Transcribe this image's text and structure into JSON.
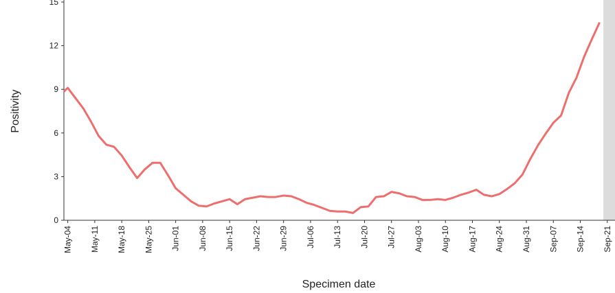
{
  "chart_data": {
    "type": "line",
    "x_label": "Specimen date",
    "y_label": "Positivity",
    "x": [
      "May-03",
      "May-04",
      "May-06",
      "May-08",
      "May-10",
      "May-12",
      "May-14",
      "May-16",
      "May-18",
      "May-20",
      "May-22",
      "May-24",
      "May-26",
      "May-28",
      "May-30",
      "Jun-01",
      "Jun-03",
      "Jun-05",
      "Jun-07",
      "Jun-09",
      "Jun-11",
      "Jun-13",
      "Jun-15",
      "Jun-17",
      "Jun-19",
      "Jun-21",
      "Jun-23",
      "Jun-25",
      "Jun-27",
      "Jun-29",
      "Jul-01",
      "Jul-03",
      "Jul-05",
      "Jul-07",
      "Jul-09",
      "Jul-11",
      "Jul-13",
      "Jul-15",
      "Jul-17",
      "Jul-19",
      "Jul-21",
      "Jul-23",
      "Jul-25",
      "Jul-27",
      "Jul-29",
      "Jul-31",
      "Aug-02",
      "Aug-04",
      "Aug-06",
      "Aug-08",
      "Aug-10",
      "Aug-12",
      "Aug-14",
      "Aug-16",
      "Aug-18",
      "Aug-20",
      "Aug-22",
      "Aug-24",
      "Aug-26",
      "Aug-28",
      "Aug-30",
      "Sep-01",
      "Sep-03",
      "Sep-05",
      "Sep-07",
      "Sep-09",
      "Sep-11",
      "Sep-13",
      "Sep-15",
      "Sep-17",
      "Sep-19"
    ],
    "series": [
      {
        "color": "#ee6e6e",
        "values": [
          8.85,
          9.1,
          8.4,
          7.7,
          6.8,
          5.8,
          5.2,
          5.05,
          4.45,
          3.65,
          2.9,
          3.5,
          3.95,
          3.95,
          3.1,
          2.2,
          1.75,
          1.3,
          1.0,
          0.95,
          1.15,
          1.3,
          1.45,
          1.1,
          1.45,
          1.55,
          1.65,
          1.6,
          1.6,
          1.7,
          1.65,
          1.45,
          1.2,
          1.05,
          0.85,
          0.65,
          0.6,
          0.6,
          0.5,
          0.9,
          0.95,
          1.6,
          1.65,
          1.95,
          1.85,
          1.65,
          1.6,
          1.4,
          1.4,
          1.45,
          1.4,
          1.55,
          1.75,
          1.9,
          2.1,
          1.75,
          1.65,
          1.8,
          2.15,
          2.55,
          3.15,
          4.2,
          5.15,
          5.95,
          6.7,
          7.2,
          8.75,
          9.8,
          11.25,
          12.45,
          13.6
        ]
      }
    ],
    "xlim": [
      "May-03",
      "Sep-23"
    ],
    "xticks": [
      "May-04",
      "May-11",
      "May-18",
      "May-25",
      "Jun-01",
      "Jun-08",
      "Jun-15",
      "Jun-22",
      "Jun-29",
      "Jul-06",
      "Jul-13",
      "Jul-20",
      "Jul-27",
      "Aug-03",
      "Aug-10",
      "Aug-17",
      "Aug-24",
      "Aug-31",
      "Sep-07",
      "Sep-14",
      "Sep-21"
    ],
    "shaded_from": "Sep-20",
    "ylim": [
      0,
      15
    ],
    "yticks": [
      0,
      3,
      6,
      9,
      12,
      15
    ]
  }
}
